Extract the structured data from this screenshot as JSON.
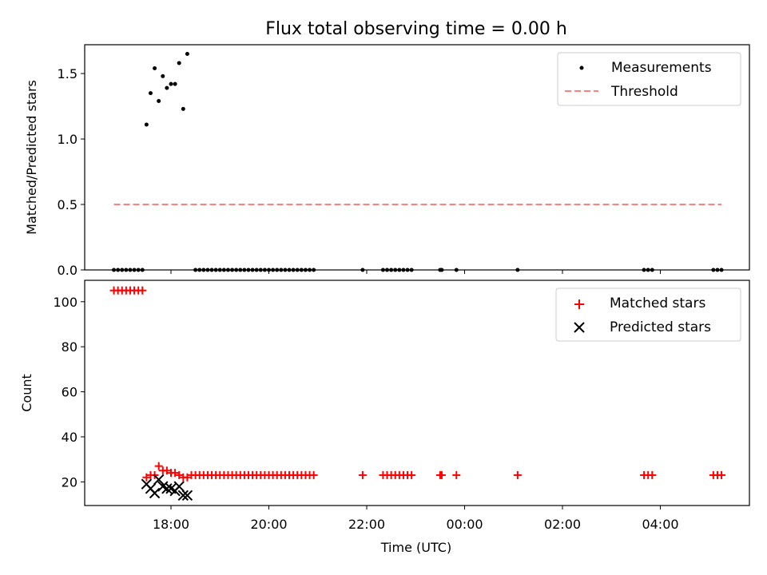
{
  "chart_data": [
    {
      "type": "scatter",
      "title": "Flux total observing time = 0.00 h",
      "xlabel": "",
      "ylabel": "Matched/Predicted stars",
      "ylim": [
        0,
        1.72
      ],
      "yticks": [
        "0.0",
        "0.5",
        "1.0",
        "1.5"
      ],
      "ytick_values": [
        0,
        0.5,
        1.0,
        1.5
      ],
      "legend_position": "top-right",
      "series": [
        {
          "name": "Measurements",
          "marker": "dot",
          "color": "#000000",
          "x": [
            "16:50",
            "16:55",
            "17:00",
            "17:05",
            "17:10",
            "17:15",
            "17:20",
            "17:25",
            "17:30",
            "17:35",
            "17:40",
            "17:45",
            "17:50",
            "17:55",
            "18:00",
            "18:05",
            "18:10",
            "18:15",
            "18:20",
            "18:30",
            "18:35",
            "18:40",
            "18:45",
            "18:50",
            "18:55",
            "19:00",
            "19:05",
            "19:10",
            "19:15",
            "19:20",
            "19:25",
            "19:30",
            "19:35",
            "19:40",
            "19:45",
            "19:50",
            "19:55",
            "20:00",
            "20:05",
            "20:10",
            "20:15",
            "20:20",
            "20:25",
            "20:30",
            "20:35",
            "20:40",
            "20:45",
            "20:50",
            "20:55",
            "21:55",
            "22:20",
            "22:25",
            "22:30",
            "22:35",
            "22:40",
            "22:45",
            "22:50",
            "22:55",
            "23:30",
            "23:32",
            "23:50",
            "01:05",
            "03:40",
            "03:45",
            "03:50",
            "05:05",
            "05:10",
            "05:15"
          ],
          "y": [
            0,
            0,
            0,
            0,
            0,
            0,
            0,
            0,
            1.11,
            1.35,
            1.54,
            1.29,
            1.48,
            1.39,
            1.42,
            1.42,
            1.58,
            1.23,
            1.65,
            0,
            0,
            0,
            0,
            0,
            0,
            0,
            0,
            0,
            0,
            0,
            0,
            0,
            0,
            0,
            0,
            0,
            0,
            0,
            0,
            0,
            0,
            0,
            0,
            0,
            0,
            0,
            0,
            0,
            0,
            0,
            0,
            0,
            0,
            0,
            0,
            0,
            0,
            0,
            0,
            0,
            0,
            0,
            0,
            0,
            0,
            0,
            0,
            0
          ]
        },
        {
          "name": "Threshold",
          "marker": "dashed-line",
          "color": "#ff7f7f",
          "x": [
            "16:50",
            "05:15"
          ],
          "y": [
            0.5,
            0.5
          ]
        }
      ]
    },
    {
      "type": "scatter",
      "title": "",
      "xlabel": "Time (UTC)",
      "ylabel": "Count",
      "ylim": [
        9.5,
        109.5
      ],
      "yticks": [
        "20",
        "40",
        "60",
        "80",
        "100"
      ],
      "ytick_values": [
        20,
        40,
        60,
        80,
        100
      ],
      "xticks": [
        "18:00",
        "20:00",
        "22:00",
        "00:00",
        "02:00",
        "04:00"
      ],
      "xtick_times": [
        "18:00",
        "20:00",
        "22:00",
        "00:00",
        "02:00",
        "04:00"
      ],
      "legend_position": "top-right",
      "series": [
        {
          "name": "Matched stars",
          "marker": "plus",
          "color": "#ff0000",
          "x": [
            "16:50",
            "16:55",
            "17:00",
            "17:05",
            "17:10",
            "17:15",
            "17:20",
            "17:25",
            "17:30",
            "17:35",
            "17:40",
            "17:45",
            "17:50",
            "17:55",
            "18:00",
            "18:05",
            "18:10",
            "18:15",
            "18:20",
            "18:25",
            "18:30",
            "18:35",
            "18:40",
            "18:45",
            "18:50",
            "18:55",
            "19:00",
            "19:05",
            "19:10",
            "19:15",
            "19:20",
            "19:25",
            "19:30",
            "19:35",
            "19:40",
            "19:45",
            "19:50",
            "19:55",
            "20:00",
            "20:05",
            "20:10",
            "20:15",
            "20:20",
            "20:25",
            "20:30",
            "20:35",
            "20:40",
            "20:45",
            "20:50",
            "20:55",
            "21:55",
            "22:20",
            "22:25",
            "22:30",
            "22:35",
            "22:40",
            "22:45",
            "22:50",
            "22:55",
            "23:30",
            "23:32",
            "23:50",
            "01:05",
            "03:40",
            "03:45",
            "03:50",
            "05:05",
            "05:10",
            "05:15"
          ],
          "y": [
            105,
            105,
            105,
            105,
            105,
            105,
            105,
            105,
            22,
            23,
            23,
            27,
            25,
            25,
            24,
            24,
            23,
            22,
            22,
            23,
            23,
            23,
            23,
            23,
            23,
            23,
            23,
            23,
            23,
            23,
            23,
            23,
            23,
            23,
            23,
            23,
            23,
            23,
            23,
            23,
            23,
            23,
            23,
            23,
            23,
            23,
            23,
            23,
            23,
            23,
            23,
            23,
            23,
            23,
            23,
            23,
            23,
            23,
            23,
            23,
            23,
            23,
            23,
            23,
            23,
            23,
            23,
            23,
            23
          ]
        },
        {
          "name": "Predicted stars",
          "marker": "x",
          "color": "#000000",
          "x": [
            "17:30",
            "17:35",
            "17:40",
            "17:45",
            "17:50",
            "17:55",
            "18:00",
            "18:05",
            "18:10",
            "18:15",
            "18:20"
          ],
          "y": [
            19,
            17,
            15,
            21,
            18,
            17,
            17,
            16,
            18,
            14,
            14
          ]
        }
      ]
    }
  ]
}
